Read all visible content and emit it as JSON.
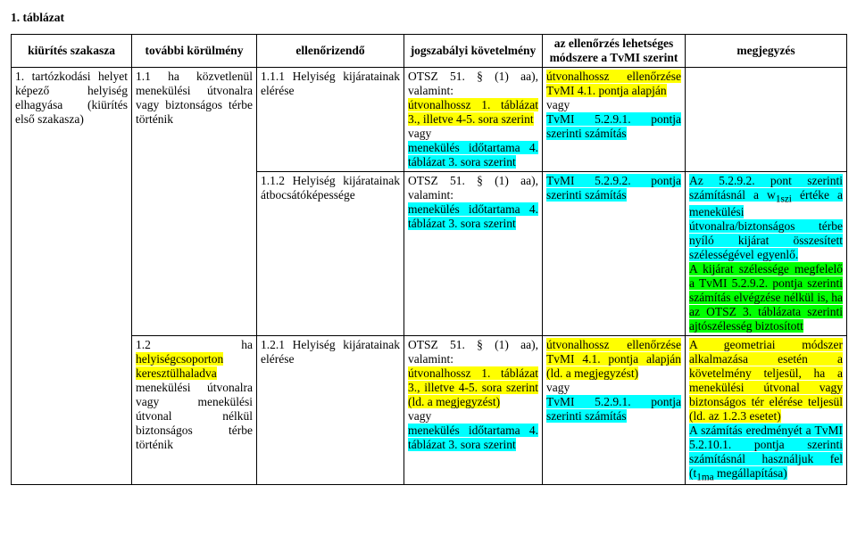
{
  "title": "1. táblázat",
  "headers": {
    "c1": "kiürítés szakasza",
    "c2": "további körülmény",
    "c3": "ellenőrizendő",
    "c4": "jogszabályi követelmény",
    "c5": "az ellenőrzés lehetséges módszere a TvMI szerint",
    "c6": "megjegyzés"
  },
  "col1_r1": "1. tartózkodási helyet képező helyiség elhagyása (kiürítés első szakasza)",
  "col2_r1": "1.1 ha közvetlenül menekülési útvonalra vagy biztonságos térbe történik",
  "col2_r2_pre": "1.2 ha ",
  "col2_r2_hl": "helyiségcsoporton keresztülhaladva",
  "col2_r2_post": " menekülési útvonalra vagy menekülési útvonal nélkül biztonságos térbe történik",
  "c3_r1": "1.1.1 Helyiség kijáratainak elérése",
  "c3_r2": "1.1.2 Helyiség kijáratainak átbocsátóképessége",
  "c3_r3": "1.2.1 Helyiség kijáratainak elérése",
  "c4_r1_a": "OTSZ 51. § (1) aa), valamint:",
  "c4_r1_b": "útvonalhossz 1. táblázat 3., illetve 4-5. sora szerint",
  "c4_r1_c": "vagy",
  "c4_r1_d": "menekülés időtartama 4. táblázat 3. sora szerint",
  "c4_r2_a": "OTSZ 51. § (1) aa), valamint:",
  "c4_r2_b": "menekülés időtartama 4. táblázat 3. sora szerint",
  "c4_r3_a": "OTSZ 51. § (1) aa), valamint:",
  "c4_r3_b": "útvonalhossz 1. táblázat 3., illetve 4-5. sora szerint (ld. a megjegyzést)",
  "c4_r3_c": "vagy",
  "c4_r3_d": "menekülés időtartama 4. táblázat 3. sora szerint",
  "c5_r1_a": "útvonalhossz ellenőrzése TvMI 4.1. pontja alapján",
  "c5_r1_b": "vagy",
  "c5_r1_c": "TvMI 5.2.9.1. pontja szerinti számítás",
  "c5_r2_a": "TvMI 5.2.9.2. pontja szerinti számítás",
  "c5_r3_a": "útvonalhossz ellenőrzése TvMI 4.1. pontja alapján (ld. a megjegyzést)",
  "c5_r3_b": "vagy",
  "c5_r3_c": "TvMI 5.2.9.1. pontja szerinti számítás",
  "c6_r2_a": "Az 5.2.9.2. pont szerinti számításnál a w",
  "c6_r2_sub": "1szi",
  "c6_r2_b": " értéke a menekülési útvonalra/biztonságos térbe nyíló kijárat összesített szélességével egyenlő.",
  "c6_r2_c": "A kijárat szélessége megfelelő a TvMI 5.2.9.2. pontja szerinti számítás elvégzése nélkül is, ha az OTSZ 3. táblázata szerinti ajtószélesség biztosított",
  "c6_r3_a": "A geometriai módszer alkalmazása esetén a követelmény teljesül, ha a menekülési útvonal vagy biztonságos tér elérése teljesül (ld. az ",
  "c6_r3_a_lnk": "1.2.3 esetet",
  "c6_r3_a_end": ")",
  "c6_r3_b": "A számítás eredményét a TvMI 5.2.10.1. pontja szerinti számításnál használjuk fel (t",
  "c6_r3_sub": "1ma",
  "c6_r3_c": " megállapítása)"
}
